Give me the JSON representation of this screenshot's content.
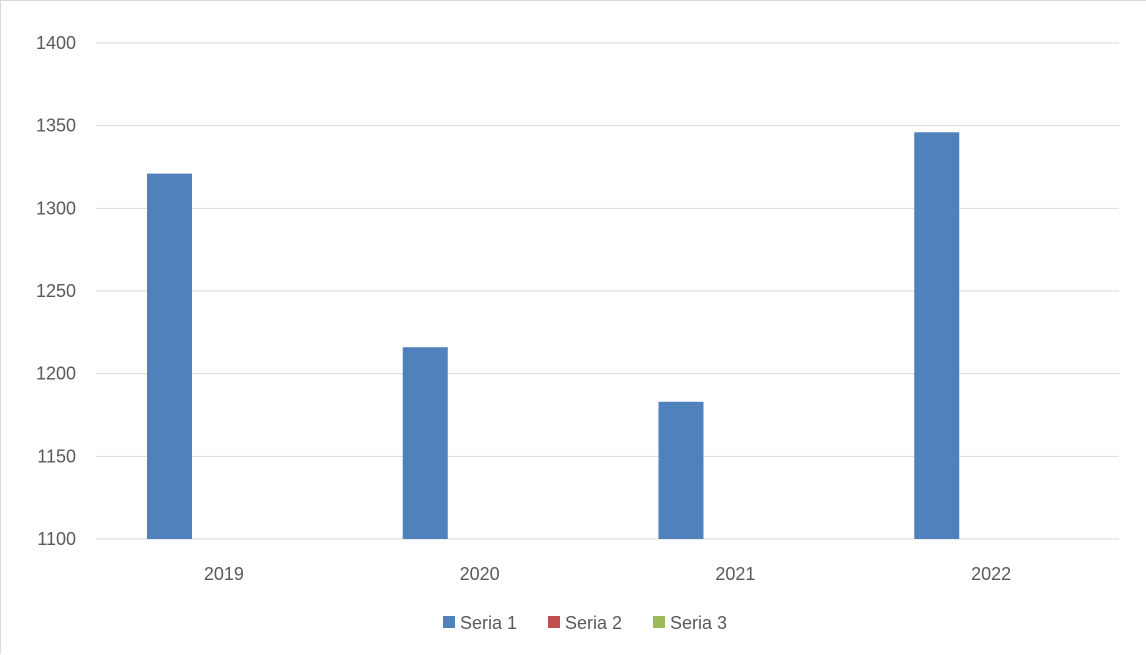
{
  "chart_data": {
    "type": "bar",
    "title": "",
    "xlabel": "",
    "ylabel": "",
    "categories": [
      "2019",
      "2020",
      "2021",
      "2022"
    ],
    "series": [
      {
        "name": "Seria 1",
        "color": "#4f81bd",
        "values": [
          1321,
          1216,
          1183,
          1346
        ]
      },
      {
        "name": "Seria 2",
        "color": "#c0504d",
        "values": [
          null,
          null,
          null,
          null
        ]
      },
      {
        "name": "Seria 3",
        "color": "#9bbb59",
        "values": [
          null,
          null,
          null,
          null
        ]
      }
    ],
    "ylim": [
      1100,
      1400
    ],
    "yticks": [
      "1100",
      "1150",
      "1200",
      "1250",
      "1300",
      "1350",
      "1400"
    ],
    "grid": true,
    "legend_position": "bottom",
    "colors": {
      "gridline": "#d9d9d9",
      "axis_text": "#595959"
    }
  }
}
